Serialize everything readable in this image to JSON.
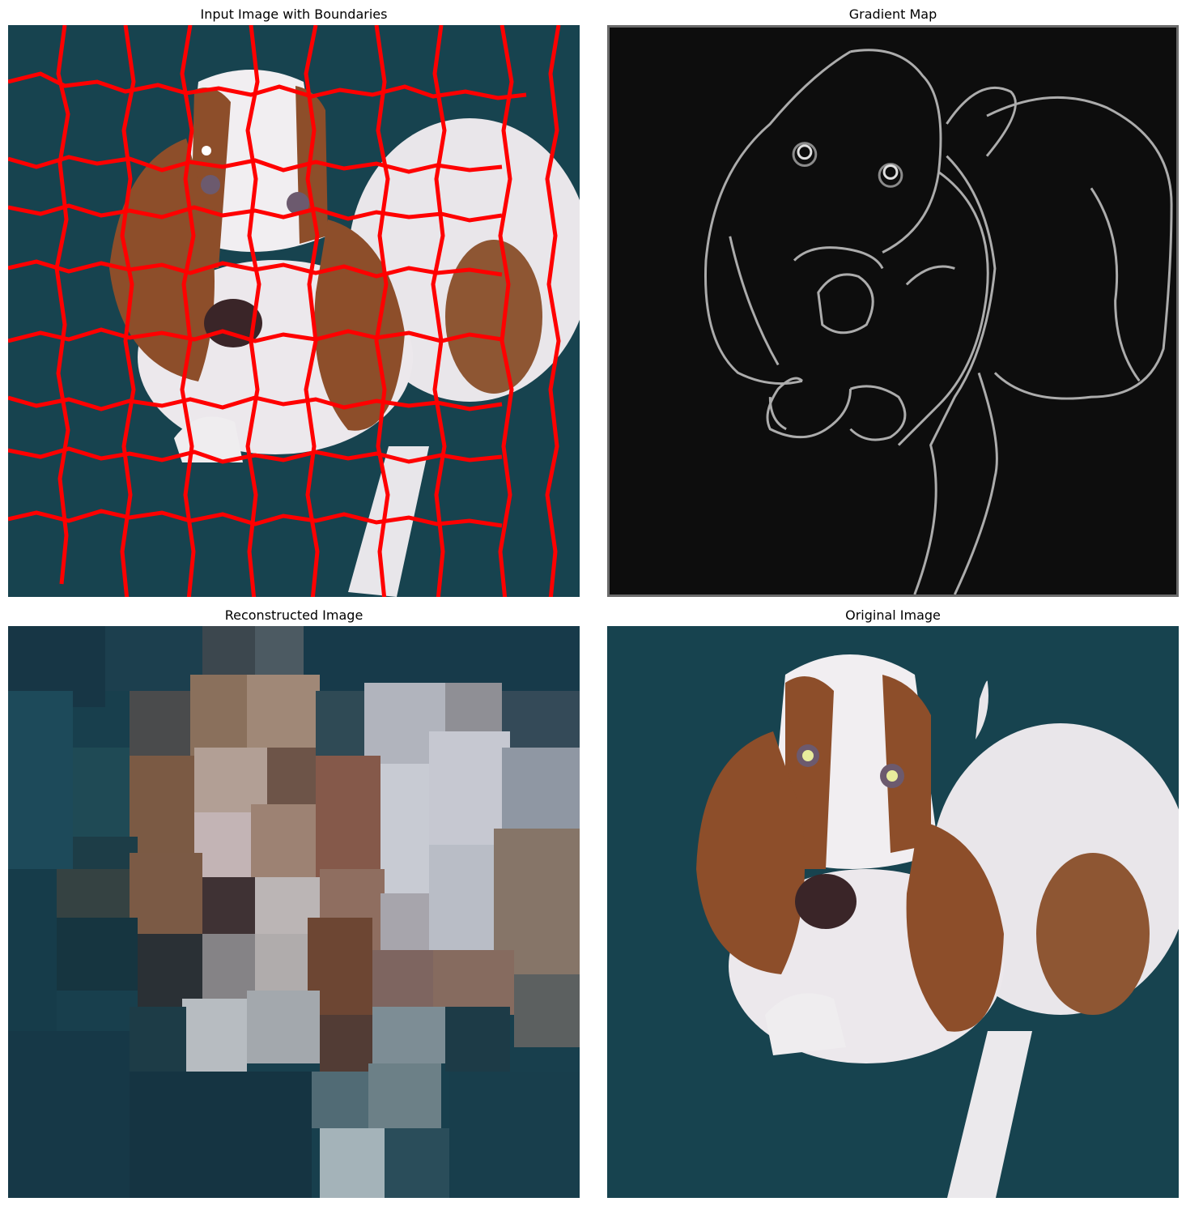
{
  "figure": {
    "panels": [
      {
        "id": "boundaries",
        "title": "Input Image with Boundaries"
      },
      {
        "id": "gradient",
        "title": "Gradient Map"
      },
      {
        "id": "reconstructed",
        "title": "Reconstructed Image"
      },
      {
        "id": "original",
        "title": "Original Image"
      }
    ]
  },
  "colors": {
    "carpet": "#17434f",
    "carpet_dark": "#113540",
    "boundary": "#ff0000",
    "gradient_bg": "#0d0d0d",
    "gradient_edge": "#c8c8c8",
    "fur_brown": "#8a4e2c",
    "fur_white": "#e9e6ea",
    "nose": "#3a2528"
  }
}
